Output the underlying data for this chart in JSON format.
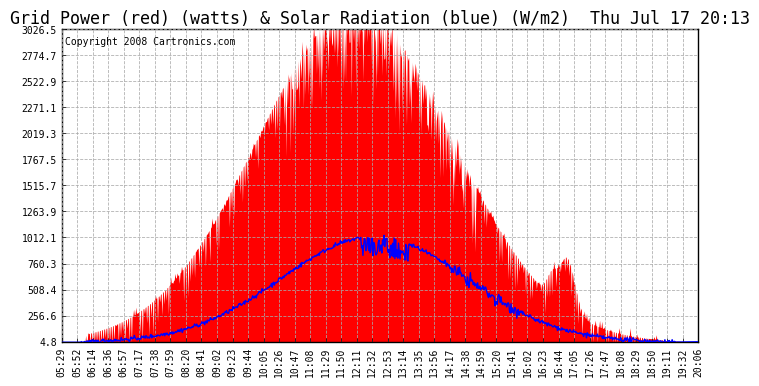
{
  "title": "Grid Power (red) (watts) & Solar Radiation (blue) (W/m2)  Thu Jul 17 20:13",
  "copyright_text": "Copyright 2008 Cartronics.com",
  "background_color": "#ffffff",
  "plot_bg_color": "#ffffff",
  "grid_color": "#aaaaaa",
  "yticks": [
    4.8,
    256.6,
    508.4,
    760.3,
    1012.1,
    1263.9,
    1515.7,
    1767.5,
    2019.3,
    2271.1,
    2522.9,
    2774.7,
    3026.5
  ],
  "ymin": 4.8,
  "ymax": 3026.5,
  "x_labels": [
    "05:29",
    "05:52",
    "06:14",
    "06:36",
    "06:57",
    "07:17",
    "07:38",
    "07:59",
    "08:20",
    "08:41",
    "09:02",
    "09:23",
    "09:44",
    "10:05",
    "10:26",
    "10:47",
    "11:08",
    "11:29",
    "11:50",
    "12:11",
    "12:32",
    "12:53",
    "13:14",
    "13:35",
    "13:56",
    "14:17",
    "14:38",
    "14:59",
    "15:20",
    "15:41",
    "16:02",
    "16:23",
    "16:44",
    "17:05",
    "17:26",
    "17:47",
    "18:08",
    "18:29",
    "18:50",
    "19:11",
    "19:32",
    "20:06"
  ],
  "red_fill_color": "#ff0000",
  "blue_line_color": "#0000ff",
  "title_fontsize": 12,
  "tick_fontsize": 7,
  "copyright_fontsize": 7
}
